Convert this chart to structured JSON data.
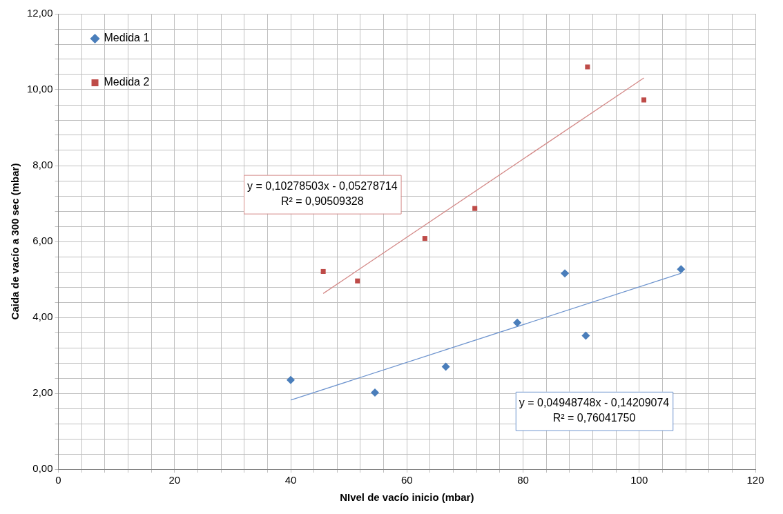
{
  "chart_data": {
    "type": "scatter",
    "xlabel": "NIvel de vacío inicio (mbar)",
    "ylabel": "Caida de vacío a 300 sec (mbar)",
    "xlim": [
      0,
      120
    ],
    "xticks": [
      0,
      {
        "value": 4,
        "label": null
      },
      {
        "value": 8,
        "label": null
      },
      {
        "value": 12,
        "label": null
      },
      {
        "value": 16,
        "label": null
      },
      20,
      {
        "value": 24,
        "label": null
      },
      {
        "value": 28,
        "label": null
      },
      {
        "value": 32,
        "label": null
      },
      {
        "value": 36,
        "label": null
      },
      40,
      {
        "value": 44,
        "label": null
      },
      {
        "value": 48,
        "label": null
      },
      {
        "value": 52,
        "label": null
      },
      {
        "value": 56,
        "label": null
      },
      60,
      {
        "value": 64,
        "label": null
      },
      {
        "value": 68,
        "label": null
      },
      {
        "value": 72,
        "label": null
      },
      {
        "value": 76,
        "label": null
      },
      80,
      {
        "value": 84,
        "label": null
      },
      {
        "value": 88,
        "label": null
      },
      {
        "value": 92,
        "label": null
      },
      {
        "value": 96,
        "label": null
      },
      100,
      {
        "value": 104,
        "label": null
      },
      {
        "value": 108,
        "label": null
      },
      {
        "value": 112,
        "label": null
      },
      {
        "value": 116,
        "label": null
      },
      120
    ],
    "ylim": [
      0,
      12
    ],
    "yticks": [
      {
        "value": 0,
        "label": "0,00"
      },
      {
        "value": 0.4,
        "label": null
      },
      {
        "value": 0.8,
        "label": null
      },
      {
        "value": 1.2,
        "label": null
      },
      {
        "value": 1.6,
        "label": null
      },
      {
        "value": 2,
        "label": "2,00"
      },
      {
        "value": 2.4,
        "label": null
      },
      {
        "value": 2.8,
        "label": null
      },
      {
        "value": 3.2,
        "label": null
      },
      {
        "value": 3.6,
        "label": null
      },
      {
        "value": 4,
        "label": "4,00"
      },
      {
        "value": 4.4,
        "label": null
      },
      {
        "value": 4.8,
        "label": null
      },
      {
        "value": 5.2,
        "label": null
      },
      {
        "value": 5.6,
        "label": null
      },
      {
        "value": 6,
        "label": "6,00"
      },
      {
        "value": 6.4,
        "label": null
      },
      {
        "value": 6.8,
        "label": null
      },
      {
        "value": 7.2,
        "label": null
      },
      {
        "value": 7.6,
        "label": null
      },
      {
        "value": 8,
        "label": "8,00"
      },
      {
        "value": 8.4,
        "label": null
      },
      {
        "value": 8.8,
        "label": null
      },
      {
        "value": 9.2,
        "label": null
      },
      {
        "value": 9.6,
        "label": null
      },
      {
        "value": 10,
        "label": "10,00"
      },
      {
        "value": 10.4,
        "label": null
      },
      {
        "value": 10.8,
        "label": null
      },
      {
        "value": 11.2,
        "label": null
      },
      {
        "value": 11.6,
        "label": null
      },
      {
        "value": 12,
        "label": "12,00"
      }
    ],
    "grid": true,
    "legend": "top left",
    "series": [
      {
        "name": "Medida 1",
        "color": "#4a7ebb",
        "marker": "diamond",
        "x": [
          40,
          54.5,
          66.7,
          79,
          87.2,
          90.8,
          107.2
        ],
        "values": [
          2.35,
          2.02,
          2.7,
          3.86,
          5.16,
          3.52,
          5.27
        ]
      },
      {
        "name": "Medida 2",
        "color": "#be4b48",
        "marker": "square",
        "x": [
          45.6,
          51.5,
          63.1,
          71.7,
          91.1,
          100.8
        ],
        "values": [
          5.21,
          4.96,
          6.08,
          6.87,
          10.6,
          9.73
        ]
      },
      {
        "type": "line",
        "color": "#6f95cf",
        "marker": "none",
        "x": [
          40,
          107.2
        ],
        "values": [
          1.82,
          5.16
        ]
      },
      {
        "type": "line",
        "color": "#d48a88",
        "marker": "none",
        "x": [
          45.6,
          100.8
        ],
        "values": [
          4.63,
          10.31
        ]
      }
    ],
    "annotations": [
      "y = 0,04948748x - 0,14209074",
      "R² = 0,76041750",
      "y = 0,10278503x - 0,05278714",
      "R² = 0,90509328"
    ]
  }
}
